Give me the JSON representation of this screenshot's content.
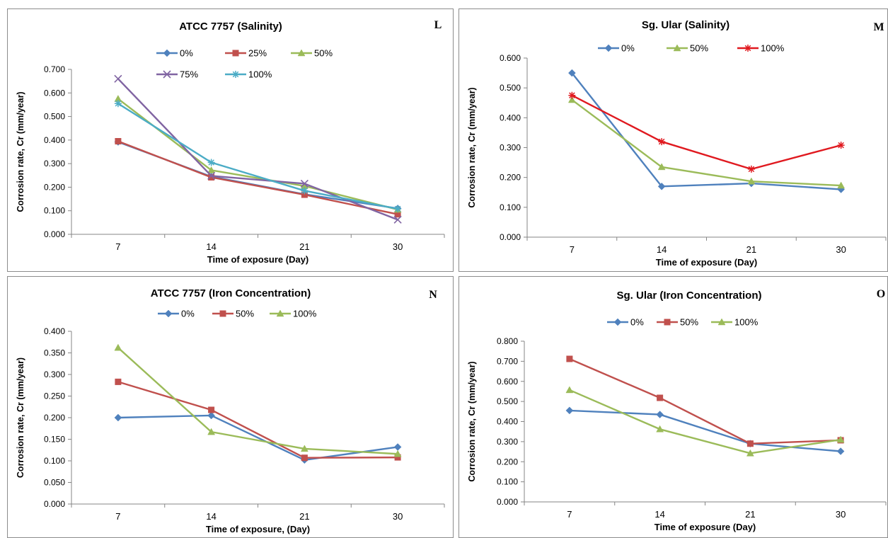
{
  "chart_data": [
    {
      "type": "line",
      "title": "ATCC 7757 (Salinity)",
      "panel_label": "L",
      "xlabel": "Time of exposure  (Day)",
      "ylabel": "Corrosion  rate,  Cr  (mm/year)",
      "categories": [
        "7",
        "14",
        "21",
        "30"
      ],
      "ylim": [
        0,
        0.7
      ],
      "yticks": [
        "0.000",
        "0.100",
        "0.200",
        "0.300",
        "0.400",
        "0.500",
        "0.600",
        "0.700"
      ],
      "legend_position": "top",
      "series": [
        {
          "name": "0%",
          "color": "#4f81bd",
          "marker": "diamond",
          "values": [
            0.392,
            0.245,
            0.17,
            0.11
          ]
        },
        {
          "name": "25%",
          "color": "#c0504d",
          "marker": "square",
          "values": [
            0.395,
            0.242,
            0.168,
            0.085
          ]
        },
        {
          "name": "50%",
          "color": "#9bbb59",
          "marker": "triangle",
          "values": [
            0.575,
            0.272,
            0.205,
            0.105
          ]
        },
        {
          "name": "75%",
          "color": "#8064a2",
          "marker": "x",
          "values": [
            0.66,
            0.248,
            0.215,
            0.062
          ]
        },
        {
          "name": "100%",
          "color": "#4bacc6",
          "marker": "asterisk",
          "values": [
            0.555,
            0.305,
            0.185,
            0.108
          ]
        }
      ]
    },
    {
      "type": "line",
      "title": "Sg. Ular (Salinity)",
      "panel_label": "M",
      "xlabel": "Time of exposure  (Day)",
      "ylabel": "Corrosion  rate,  Cr  (mm/year)",
      "categories": [
        "7",
        "14",
        "21",
        "30"
      ],
      "ylim": [
        0,
        0.6
      ],
      "yticks": [
        "0.000",
        "0.100",
        "0.200",
        "0.300",
        "0.400",
        "0.500",
        "0.600"
      ],
      "legend_position": "top",
      "series": [
        {
          "name": "0%",
          "color": "#4f81bd",
          "marker": "diamond",
          "values": [
            0.55,
            0.17,
            0.18,
            0.16
          ]
        },
        {
          "name": "50%",
          "color": "#9bbb59",
          "marker": "triangle",
          "values": [
            0.46,
            0.235,
            0.187,
            0.173
          ]
        },
        {
          "name": "100%",
          "color": "#e0191f",
          "marker": "asterisk",
          "values": [
            0.475,
            0.32,
            0.228,
            0.308
          ]
        }
      ]
    },
    {
      "type": "line",
      "title": "ATCC 7757 (Iron Concentration)",
      "panel_label": "N",
      "xlabel": "Time of exposure,  (Day)",
      "ylabel": "Corrosion  rate,  Cr  (mm/year)",
      "categories": [
        "7",
        "14",
        "21",
        "30"
      ],
      "ylim": [
        0,
        0.4
      ],
      "yticks": [
        "0.000",
        "0.050",
        "0.100",
        "0.150",
        "0.200",
        "0.250",
        "0.300",
        "0.350",
        "0.400"
      ],
      "legend_position": "top",
      "series": [
        {
          "name": "0%",
          "color": "#4f81bd",
          "marker": "diamond",
          "values": [
            0.2,
            0.205,
            0.102,
            0.132
          ]
        },
        {
          "name": "50%",
          "color": "#c0504d",
          "marker": "square",
          "values": [
            0.283,
            0.218,
            0.107,
            0.108
          ]
        },
        {
          "name": "100%",
          "color": "#9bbb59",
          "marker": "triangle",
          "values": [
            0.362,
            0.167,
            0.128,
            0.116
          ]
        }
      ]
    },
    {
      "type": "line",
      "title": "Sg. Ular (Iron Concentration)",
      "panel_label": "O",
      "xlabel": "Time of exposure  (Day)",
      "ylabel": "Corrosion  rate,  Cr  (mm/year)",
      "categories": [
        "7",
        "14",
        "21",
        "30"
      ],
      "ylim": [
        0,
        0.8
      ],
      "yticks": [
        "0.000",
        "0.100",
        "0.200",
        "0.300",
        "0.400",
        "0.500",
        "0.600",
        "0.700",
        "0.800"
      ],
      "legend_position": "top",
      "series": [
        {
          "name": "0%",
          "color": "#4f81bd",
          "marker": "diamond",
          "values": [
            0.455,
            0.435,
            0.29,
            0.252
          ]
        },
        {
          "name": "50%",
          "color": "#c0504d",
          "marker": "square",
          "values": [
            0.712,
            0.518,
            0.29,
            0.307
          ]
        },
        {
          "name": "100%",
          "color": "#9bbb59",
          "marker": "triangle",
          "values": [
            0.557,
            0.362,
            0.242,
            0.31
          ]
        }
      ]
    }
  ]
}
